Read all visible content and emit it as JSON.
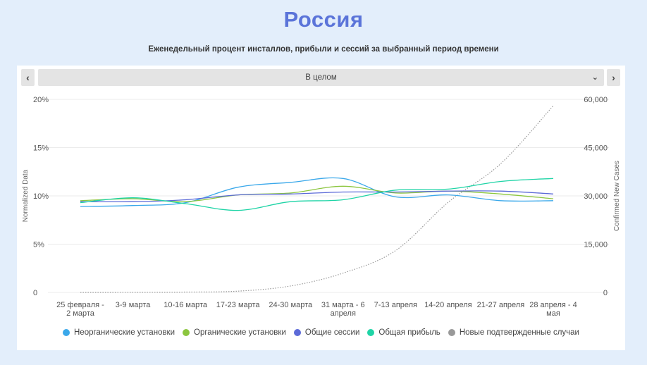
{
  "page": {
    "title": "Россия",
    "subtitle": "Еженедельный процент инсталлов, прибыли и сессий за выбранный период времени"
  },
  "controls": {
    "prev_icon": "chevron-left-icon",
    "next_icon": "chevron-right-icon",
    "dropdown_icon": "chevron-down-icon",
    "prev_glyph": "‹",
    "next_glyph": "›",
    "dropdown_glyph": "⌄",
    "period_selected": "В целом"
  },
  "chart_data": {
    "type": "line",
    "categories": [
      [
        "25 февраля -",
        "2 марта"
      ],
      [
        "3-9 марта"
      ],
      [
        "10-16 марта"
      ],
      [
        "17-23 марта"
      ],
      [
        "24-30 марта"
      ],
      [
        "31 марта - 6",
        "апреля"
      ],
      [
        "7-13 апреля"
      ],
      [
        "14-20 апреля"
      ],
      [
        "21-27 апреля"
      ],
      [
        "28 апреля - 4",
        "мая"
      ]
    ],
    "y_left": {
      "label": "Normalized Data",
      "ticks": [
        "0",
        "5%",
        "10%",
        "15%",
        "20%"
      ],
      "range": [
        0,
        20
      ]
    },
    "y_right": {
      "label": "Confirmed New Cases",
      "ticks": [
        "0",
        "15,000",
        "30,000",
        "45,000",
        "60,000"
      ],
      "range": [
        0,
        60000
      ]
    },
    "grid": true,
    "legend_position": "bottom",
    "series": [
      {
        "name": "Неорганические установки",
        "color": "#3aa8ea",
        "axis": "left",
        "style": "solid",
        "values": [
          8.9,
          9.0,
          9.3,
          10.9,
          11.4,
          11.8,
          9.9,
          10.1,
          9.5,
          9.5
        ]
      },
      {
        "name": "Органические установки",
        "color": "#8cc63f",
        "axis": "left",
        "style": "solid",
        "values": [
          9.5,
          9.7,
          9.4,
          10.1,
          10.3,
          11.0,
          10.3,
          10.5,
          10.2,
          9.7
        ]
      },
      {
        "name": "Общие сессии",
        "color": "#5c6ad8",
        "axis": "left",
        "style": "solid",
        "values": [
          9.4,
          9.4,
          9.6,
          10.1,
          10.2,
          10.4,
          10.4,
          10.5,
          10.5,
          10.2
        ]
      },
      {
        "name": "Общая прибыль",
        "color": "#1fd4a6",
        "axis": "left",
        "style": "solid",
        "values": [
          9.3,
          9.8,
          9.2,
          8.5,
          9.4,
          9.6,
          10.6,
          10.7,
          11.5,
          11.8
        ]
      },
      {
        "name": "Новые подтвержденные случаи",
        "color": "#999999",
        "axis": "right",
        "style": "dotted",
        "values": [
          0,
          20,
          100,
          400,
          2000,
          6000,
          13000,
          28000,
          40000,
          58000
        ]
      }
    ]
  }
}
